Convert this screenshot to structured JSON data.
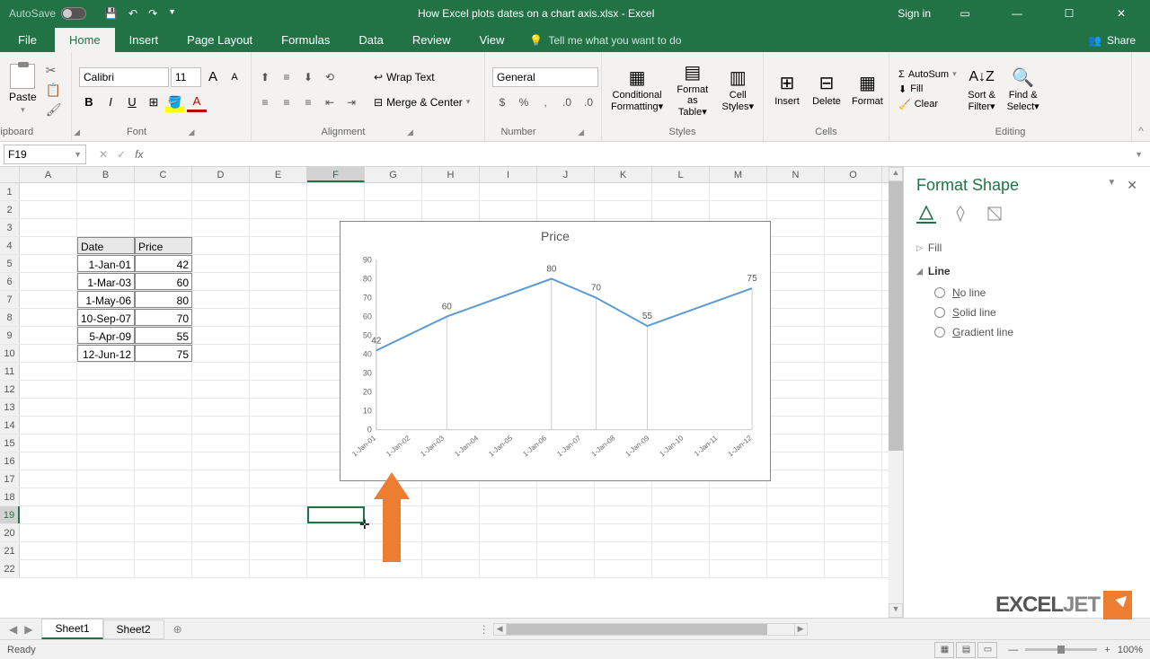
{
  "title_bar": {
    "autosave_label": "AutoSave",
    "autosave_state": "Off",
    "document_name": "How Excel plots dates on a chart axis.xlsx - Excel",
    "sign_in": "Sign in"
  },
  "tabs": {
    "file": "File",
    "home": "Home",
    "insert": "Insert",
    "page_layout": "Page Layout",
    "formulas": "Formulas",
    "data": "Data",
    "review": "Review",
    "view": "View",
    "tell_me": "Tell me what you want to do",
    "share": "Share"
  },
  "ribbon": {
    "clipboard": {
      "label": "Clipboard",
      "paste": "Paste"
    },
    "font": {
      "label": "Font",
      "name": "Calibri",
      "size": "11",
      "increase": "A",
      "decrease": "A"
    },
    "alignment": {
      "label": "Alignment",
      "wrap": "Wrap Text",
      "merge": "Merge & Center"
    },
    "number": {
      "label": "Number",
      "format": "General"
    },
    "styles": {
      "label": "Styles",
      "conditional": "Conditional Formatting",
      "format_as": "Format as Table",
      "cell_styles": "Cell Styles"
    },
    "cells": {
      "label": "Cells",
      "insert": "Insert",
      "delete": "Delete",
      "format": "Format"
    },
    "editing": {
      "label": "Editing",
      "autosum": "AutoSum",
      "fill": "Fill",
      "clear": "Clear",
      "sort": "Sort & Filter",
      "find": "Find & Select"
    }
  },
  "formula_bar": {
    "cell_ref": "F19",
    "formula": ""
  },
  "columns": [
    "A",
    "B",
    "C",
    "D",
    "E",
    "F",
    "G",
    "H",
    "I",
    "J",
    "K",
    "L",
    "M",
    "N",
    "O"
  ],
  "data_table": {
    "headers": [
      "Date",
      "Price"
    ],
    "rows": [
      [
        "1-Jan-01",
        "42"
      ],
      [
        "1-Mar-03",
        "60"
      ],
      [
        "1-May-06",
        "80"
      ],
      [
        "10-Sep-07",
        "70"
      ],
      [
        "5-Apr-09",
        "55"
      ],
      [
        "12-Jun-12",
        "75"
      ]
    ]
  },
  "chart": {
    "title": "Price",
    "type": "line",
    "ylim": [
      0,
      90
    ],
    "ytick_step": 10,
    "yticks": [
      "0",
      "10",
      "20",
      "30",
      "40",
      "50",
      "60",
      "70",
      "80",
      "90"
    ],
    "xticks": [
      "1-Jan-01",
      "1-Jan-02",
      "1-Jan-03",
      "1-Jan-04",
      "1-Jan-05",
      "1-Jan-06",
      "1-Jan-07",
      "1-Jan-08",
      "1-Jan-09",
      "1-Jan-10",
      "1-Jan-11",
      "1-Jan-12"
    ],
    "series_color": "#5b9bd5",
    "data_labels": [
      "42",
      "60",
      "80",
      "70",
      "55",
      "75"
    ],
    "points": [
      {
        "x": 0.0,
        "y": 42
      },
      {
        "x": 0.195,
        "y": 60
      },
      {
        "x": 0.485,
        "y": 80
      },
      {
        "x": 0.608,
        "y": 70
      },
      {
        "x": 0.75,
        "y": 55
      },
      {
        "x": 1.04,
        "y": 75
      }
    ],
    "background_color": "#ffffff",
    "drop_line_color": "#bfbfbf",
    "axis_fontsize": 9,
    "title_fontsize": 14
  },
  "arrow": {
    "fill_color": "#ed7d31"
  },
  "format_pane": {
    "title": "Format Shape",
    "sections": {
      "fill": "Fill",
      "line": "Line"
    },
    "line_options": {
      "no_line": "No line",
      "solid": "Solid line",
      "gradient": "Gradient line"
    }
  },
  "sheet_tabs": {
    "sheet1": "Sheet1",
    "sheet2": "Sheet2"
  },
  "status_bar": {
    "ready": "Ready",
    "zoom": "100%"
  },
  "watermark": "EXCELJET"
}
